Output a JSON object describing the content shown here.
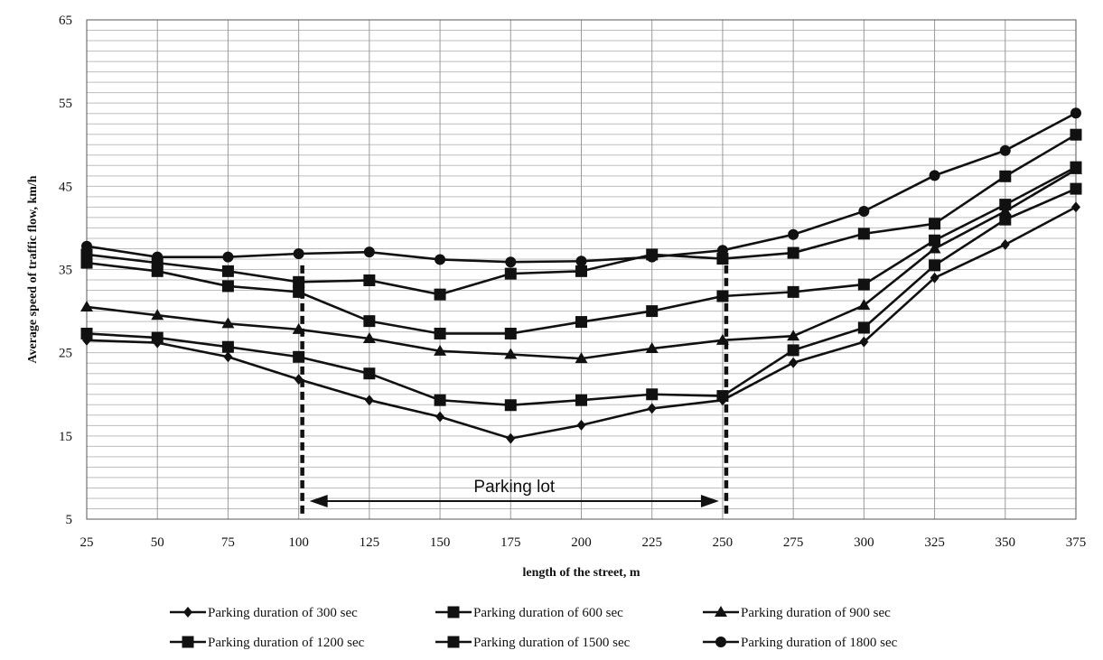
{
  "chart_data": {
    "type": "line",
    "xlabel": "length of the street, m",
    "ylabel": "Average speed of traffic  flow,  km/h",
    "ylim": [
      5,
      65
    ],
    "xlim": [
      25,
      375
    ],
    "y_ticks": [
      5,
      15,
      25,
      35,
      45,
      55,
      65
    ],
    "x": [
      25,
      50,
      75,
      100,
      125,
      150,
      175,
      200,
      225,
      250,
      275,
      300,
      325,
      350,
      375
    ],
    "grid": true,
    "legend_position": "bottom",
    "series": [
      {
        "name": "Parking duration of 300 sec",
        "marker": "diamond",
        "values": [
          26.5,
          26.2,
          24.5,
          21.8,
          19.3,
          17.3,
          14.7,
          16.3,
          18.3,
          19.3,
          23.8,
          26.3,
          34.0,
          38.0,
          42.5
        ]
      },
      {
        "name": "Parking duration of 600 sec",
        "marker": "square",
        "values": [
          27.3,
          26.8,
          25.7,
          24.5,
          22.5,
          19.3,
          18.7,
          19.3,
          20.0,
          19.8,
          25.3,
          28.0,
          35.5,
          41.0,
          44.7
        ]
      },
      {
        "name": "Parking duration of 900 sec",
        "marker": "triangle",
        "values": [
          30.5,
          29.5,
          28.5,
          27.8,
          26.7,
          25.2,
          24.8,
          24.3,
          25.5,
          26.5,
          27.0,
          30.7,
          37.5,
          42.0,
          47.0
        ]
      },
      {
        "name": "Parking duration of 1200 sec",
        "marker": "square",
        "values": [
          35.8,
          34.8,
          33.0,
          32.3,
          28.8,
          27.3,
          27.3,
          28.7,
          30.0,
          31.8,
          32.3,
          33.2,
          38.5,
          42.8,
          47.3
        ]
      },
      {
        "name": "Parking duration of 1500 sec",
        "marker": "square",
        "values": [
          36.8,
          35.8,
          34.8,
          33.5,
          33.7,
          32.0,
          34.5,
          34.8,
          36.8,
          36.3,
          37.0,
          39.3,
          40.5,
          46.2,
          51.2
        ]
      },
      {
        "name": "Parking duration of 1800 sec",
        "marker": "circle",
        "values": [
          37.8,
          36.5,
          36.5,
          36.9,
          37.1,
          36.2,
          35.9,
          36.0,
          36.5,
          37.3,
          39.2,
          42.0,
          46.3,
          49.3,
          53.8
        ]
      }
    ],
    "annotation": {
      "text": "Parking lot",
      "x_start": 100,
      "x_end": 250
    }
  }
}
